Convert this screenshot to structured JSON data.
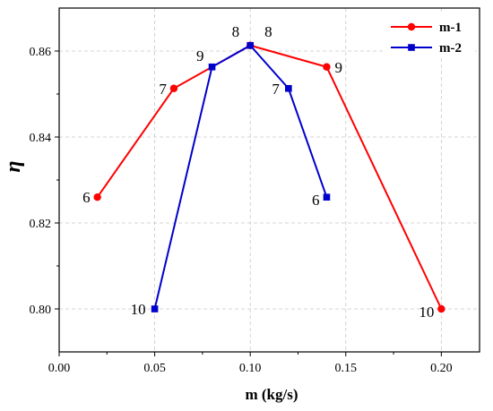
{
  "chart_data": {
    "type": "line",
    "xlabel": "m (kg/s)",
    "ylabel": "η",
    "xlim": [
      0.0,
      0.22
    ],
    "ylim": [
      0.79,
      0.87
    ],
    "xticks": [
      0.0,
      0.05,
      0.1,
      0.15,
      0.2
    ],
    "yticks": [
      0.8,
      0.82,
      0.84,
      0.86
    ],
    "xtick_labels": [
      "0.00",
      "0.05",
      "0.10",
      "0.15",
      "0.20"
    ],
    "ytick_labels": [
      "0.80",
      "0.82",
      "0.84",
      "0.86"
    ],
    "grid": true,
    "legend_position": "top-right",
    "series": [
      {
        "name": "m-1",
        "color": "#ff0000",
        "marker": "circle",
        "x": [
          0.02,
          0.06,
          0.1,
          0.14,
          0.2
        ],
        "y": [
          0.826,
          0.8513,
          0.8613,
          0.8563,
          0.8
        ],
        "labels": [
          "6",
          "7",
          "8",
          "9",
          "10"
        ]
      },
      {
        "name": "m-2",
        "color": "#0000cc",
        "marker": "square",
        "x": [
          0.05,
          0.08,
          0.1,
          0.12,
          0.14
        ],
        "y": [
          0.8,
          0.8563,
          0.8613,
          0.8513,
          0.826
        ],
        "labels": [
          "10",
          "9",
          "8",
          "7",
          "6"
        ]
      }
    ]
  }
}
